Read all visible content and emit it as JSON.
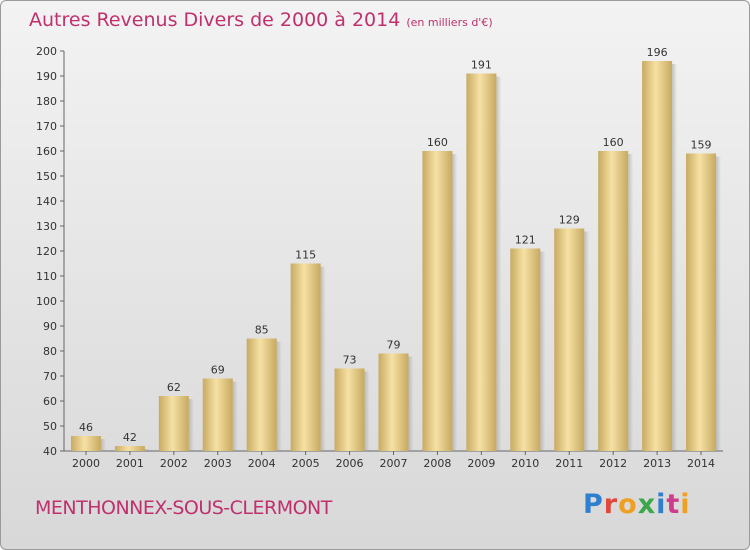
{
  "header": {
    "title": "Autres Revenus Divers de 2000 à 2014",
    "subtitle": "(en milliers d'€)"
  },
  "footer": {
    "town": "MENTHONNEX-SOUS-CLERMONT",
    "logo": "Proxiti"
  },
  "colors": {
    "accent": "#c0306e",
    "bar_light": "#f4dc9a",
    "bar_dark": "#c8aa62"
  },
  "chart_data": {
    "type": "bar",
    "title": "Autres Revenus Divers de 2000 à 2014",
    "categories": [
      "2000",
      "2001",
      "2002",
      "2003",
      "2004",
      "2005",
      "2006",
      "2007",
      "2008",
      "2009",
      "2010",
      "2011",
      "2012",
      "2013",
      "2014"
    ],
    "values": [
      46,
      42,
      62,
      69,
      85,
      115,
      73,
      79,
      160,
      191,
      121,
      129,
      160,
      196,
      159
    ],
    "ylim": [
      40,
      200
    ],
    "yticks": [
      40,
      50,
      60,
      70,
      80,
      90,
      100,
      110,
      120,
      130,
      140,
      150,
      160,
      170,
      180,
      190,
      200
    ],
    "grid": false,
    "legend": "none"
  }
}
